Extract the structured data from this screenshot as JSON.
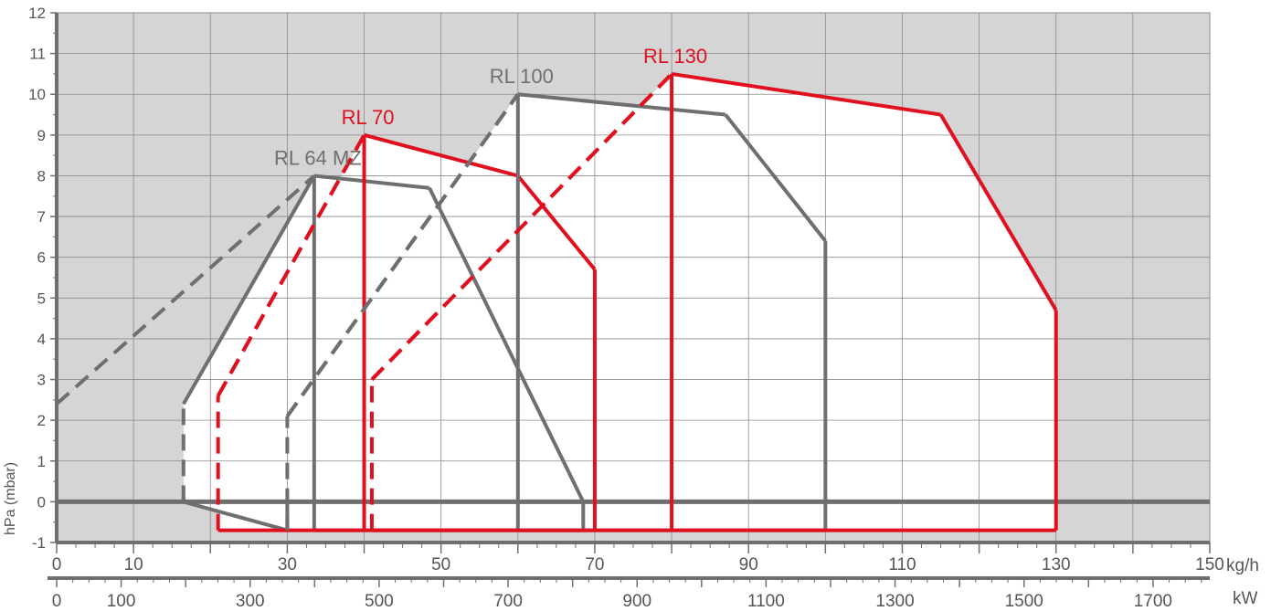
{
  "chart_data": {
    "type": "area",
    "ylabel": "hPa (mbar)",
    "x_unit_primary": "kg/h",
    "x_unit_secondary": "kW",
    "ylim": [
      -1,
      12
    ],
    "xlim_primary": [
      0,
      150
    ],
    "xlim_secondary": [
      0,
      1788
    ],
    "y_ticks": [
      "-1",
      "0",
      "1",
      "2",
      "3",
      "4",
      "5",
      "6",
      "7",
      "8",
      "9",
      "10",
      "11",
      "12"
    ],
    "x_ticks_primary": [
      "0",
      "10",
      "30",
      "50",
      "70",
      "90",
      "110",
      "130",
      "150"
    ],
    "x_ticks_secondary": [
      "0",
      "100",
      "300",
      "500",
      "700",
      "900",
      "1100",
      "1300",
      "1500",
      "1700"
    ],
    "grid": true,
    "colors": {
      "grey": "#6f6f6f",
      "red": "#e0101f",
      "plot_bg": "#d5d5d5",
      "inner_bg": "#ffffff"
    },
    "series": [
      {
        "name": "RL 64 MZ",
        "color": "grey",
        "x": [
          16.5,
          16.5,
          33.5,
          48.5,
          68.5,
          68.5,
          33.5,
          33.5,
          30.0,
          30.0,
          16.5
        ],
        "y": [
          0,
          2.4,
          8.0,
          7.7,
          0,
          -0.7,
          -0.7,
          0,
          0,
          -0.7,
          0
        ],
        "dashed_segments": [
          [
            0,
            2.4,
            33.5,
            8.0
          ]
        ],
        "solid_closing": [
          [
            33.5,
            8.0,
            33.5,
            0
          ]
        ]
      },
      {
        "name": "RL 70",
        "color": "red",
        "x": [
          21.0,
          21.0,
          40.0,
          60.0,
          70.0,
          70.0,
          21.0
        ],
        "y": [
          -0.7,
          2.6,
          9.0,
          8.0,
          5.7,
          -0.7,
          -0.7
        ],
        "dashed_segments": [
          [
            21.0,
            2.6,
            40.0,
            9.0
          ]
        ],
        "solid_closing": [
          [
            40.0,
            9.0,
            40.0,
            -0.7
          ]
        ]
      },
      {
        "name": "RL 100",
        "color": "grey",
        "x": [
          30.0,
          30.0,
          60.0,
          87.0,
          100.0,
          100.0,
          60.0
        ],
        "y": [
          -0.7,
          2.1,
          10.0,
          9.5,
          6.4,
          -0.7,
          -0.7
        ],
        "dashed_segments": [
          [
            30.0,
            2.1,
            60.0,
            10.0
          ]
        ],
        "solid_closing": [
          [
            60.0,
            10.0,
            60.0,
            -0.7
          ]
        ]
      },
      {
        "name": "RL 130",
        "color": "red",
        "x": [
          41.0,
          41.0,
          80.0,
          115.0,
          130.0,
          130.0,
          41.0
        ],
        "y": [
          -0.7,
          3.0,
          10.5,
          9.5,
          4.7,
          -0.7,
          -0.7
        ],
        "dashed_segments": [
          [
            41.0,
            3.0,
            80.0,
            10.5
          ]
        ],
        "solid_closing": [
          [
            80.0,
            10.5,
            80.0,
            -0.7
          ]
        ]
      }
    ]
  }
}
